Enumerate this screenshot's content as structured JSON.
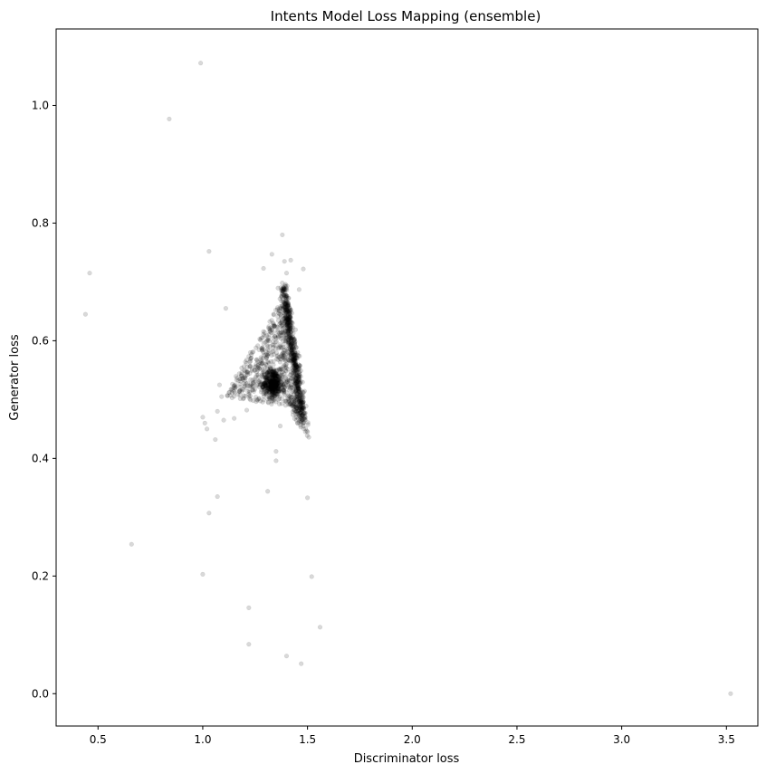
{
  "chart_data": {
    "type": "scatter",
    "title": "Intents Model Loss Mapping (ensemble)",
    "xlabel": "Discriminator loss",
    "ylabel": "Generator loss",
    "xlim": [
      0.3,
      3.65
    ],
    "ylim": [
      -0.055,
      1.13
    ],
    "xticks": [
      0.5,
      1.0,
      1.5,
      2.0,
      2.5,
      3.0,
      3.5
    ],
    "yticks": [
      0.0,
      0.2,
      0.4,
      0.6,
      0.8,
      1.0
    ],
    "xtick_labels": [
      "0.5",
      "1.0",
      "1.5",
      "2.0",
      "2.5",
      "3.0",
      "3.5"
    ],
    "ytick_labels": [
      "0.0",
      "0.2",
      "0.4",
      "0.6",
      "0.8",
      "1.0"
    ],
    "grid": false,
    "marker_color": "#000000",
    "marker_alpha": 0.15,
    "outlier_points": [
      {
        "x": 0.99,
        "y": 1.072
      },
      {
        "x": 0.84,
        "y": 0.977
      },
      {
        "x": 0.46,
        "y": 0.715
      },
      {
        "x": 0.44,
        "y": 0.645
      },
      {
        "x": 1.03,
        "y": 0.752
      },
      {
        "x": 1.11,
        "y": 0.655
      },
      {
        "x": 0.66,
        "y": 0.254
      },
      {
        "x": 1.0,
        "y": 0.203
      },
      {
        "x": 1.03,
        "y": 0.307
      },
      {
        "x": 1.07,
        "y": 0.335
      },
      {
        "x": 1.31,
        "y": 0.344
      },
      {
        "x": 1.5,
        "y": 0.333
      },
      {
        "x": 1.52,
        "y": 0.199
      },
      {
        "x": 1.22,
        "y": 0.146
      },
      {
        "x": 1.56,
        "y": 0.113
      },
      {
        "x": 1.22,
        "y": 0.084
      },
      {
        "x": 1.4,
        "y": 0.064
      },
      {
        "x": 1.47,
        "y": 0.051
      },
      {
        "x": 3.52,
        "y": 0.0
      },
      {
        "x": 1.38,
        "y": 0.78
      },
      {
        "x": 1.33,
        "y": 0.747
      },
      {
        "x": 1.42,
        "y": 0.737
      },
      {
        "x": 1.39,
        "y": 0.735
      },
      {
        "x": 1.29,
        "y": 0.723
      },
      {
        "x": 1.48,
        "y": 0.722
      },
      {
        "x": 1.4,
        "y": 0.715
      },
      {
        "x": 1.46,
        "y": 0.687
      },
      {
        "x": 1.35,
        "y": 0.412
      },
      {
        "x": 1.35,
        "y": 0.396
      },
      {
        "x": 1.06,
        "y": 0.432
      },
      {
        "x": 1.0,
        "y": 0.47
      },
      {
        "x": 1.01,
        "y": 0.46
      },
      {
        "x": 1.02,
        "y": 0.45
      },
      {
        "x": 1.08,
        "y": 0.525
      },
      {
        "x": 1.09,
        "y": 0.505
      },
      {
        "x": 1.07,
        "y": 0.48
      },
      {
        "x": 1.1,
        "y": 0.465
      },
      {
        "x": 1.15,
        "y": 0.468
      },
      {
        "x": 1.21,
        "y": 0.482
      },
      {
        "x": 1.37,
        "y": 0.455
      },
      {
        "x": 1.48,
        "y": 0.455
      },
      {
        "x": 1.5,
        "y": 0.445
      },
      {
        "x": 1.49,
        "y": 0.47
      },
      {
        "x": 1.47,
        "y": 0.462
      }
    ],
    "clusters": [
      {
        "name": "vertical_band",
        "x_from": 1.385,
        "x_to": 1.475,
        "y_from": 0.69,
        "y_to": 0.47,
        "count": 700,
        "spread": 0.01
      },
      {
        "name": "dense_blob",
        "x_center": 1.335,
        "y_center": 0.528,
        "count": 380,
        "spread_x": 0.022,
        "spread_y": 0.012
      },
      {
        "name": "triangle_fill",
        "vertices": [
          [
            1.37,
            0.665
          ],
          [
            1.1,
            0.505
          ],
          [
            1.45,
            0.485
          ]
        ],
        "count": 520
      },
      {
        "name": "lower_tail",
        "x_from": 1.42,
        "x_to": 1.5,
        "y_from": 0.5,
        "y_to": 0.442,
        "count": 60,
        "spread": 0.012
      }
    ]
  }
}
